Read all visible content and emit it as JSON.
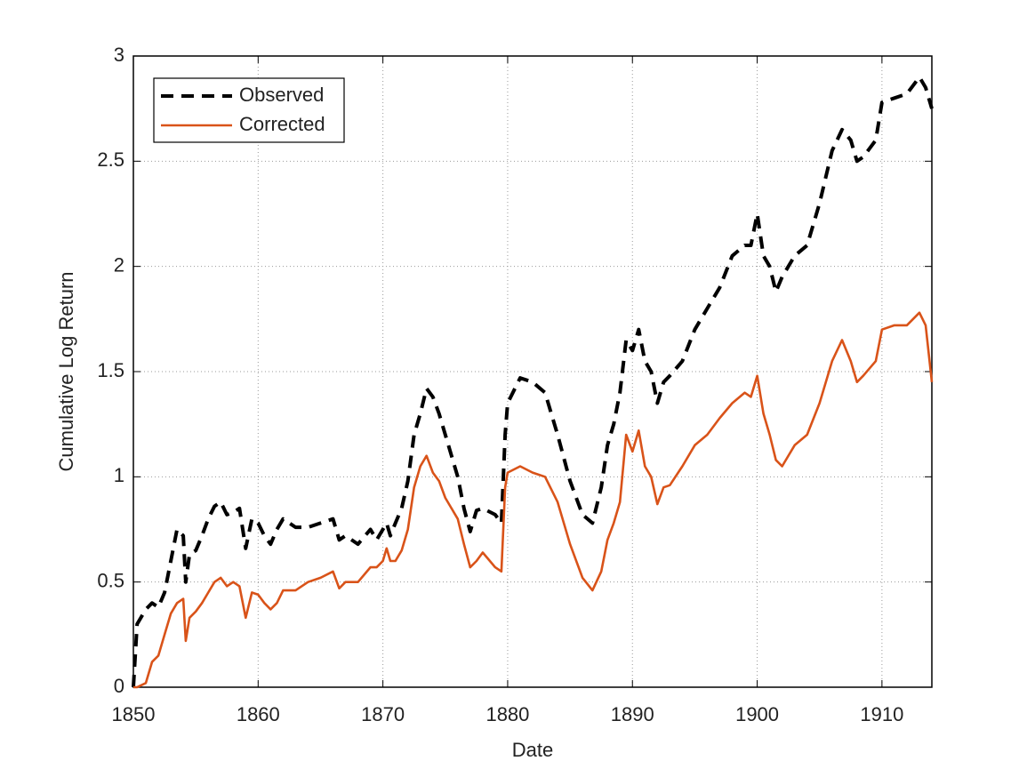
{
  "chart_data": {
    "type": "line",
    "xlabel": "Date",
    "ylabel": "Cumulative Log Return",
    "x": [
      1850,
      1850.3,
      1851,
      1851.5,
      1852,
      1852.5,
      1853,
      1853.5,
      1854,
      1854.2,
      1854.5,
      1855,
      1855.5,
      1856,
      1856.5,
      1857,
      1857.5,
      1858,
      1858.5,
      1859,
      1859.5,
      1860,
      1860.5,
      1861,
      1861.5,
      1862,
      1863,
      1864,
      1865,
      1866,
      1866.5,
      1867,
      1868,
      1869,
      1869.5,
      1870,
      1870.3,
      1870.6,
      1871,
      1871.5,
      1872,
      1872.5,
      1873,
      1873.5,
      1874,
      1874.5,
      1875,
      1876,
      1876.5,
      1877,
      1877.5,
      1878,
      1879,
      1879.5,
      1879.8,
      1880,
      1881,
      1882,
      1883,
      1884,
      1885,
      1886,
      1886.8,
      1887.5,
      1888,
      1888.5,
      1889,
      1889.5,
      1890,
      1890.5,
      1891,
      1891.5,
      1892,
      1892.5,
      1893,
      1894,
      1895,
      1896,
      1897,
      1898,
      1899,
      1899.5,
      1900,
      1900.5,
      1901,
      1901.5,
      1902,
      1903,
      1904,
      1905,
      1906,
      1906.8,
      1907.5,
      1908,
      1908.5,
      1909.5,
      1910,
      1911,
      1912,
      1913,
      1913.5,
      1914
    ],
    "series": [
      {
        "name": "Observed",
        "color": "#000000",
        "dashed": true,
        "values": [
          0,
          0.3,
          0.37,
          0.4,
          0.38,
          0.45,
          0.6,
          0.75,
          0.72,
          0.5,
          0.63,
          0.65,
          0.72,
          0.8,
          0.86,
          0.88,
          0.82,
          0.83,
          0.85,
          0.66,
          0.8,
          0.78,
          0.72,
          0.68,
          0.75,
          0.8,
          0.76,
          0.76,
          0.78,
          0.8,
          0.7,
          0.72,
          0.68,
          0.75,
          0.7,
          0.75,
          0.78,
          0.72,
          0.78,
          0.85,
          0.98,
          1.2,
          1.3,
          1.42,
          1.38,
          1.3,
          1.2,
          1.0,
          0.85,
          0.74,
          0.84,
          0.85,
          0.82,
          0.78,
          1.2,
          1.35,
          1.47,
          1.45,
          1.4,
          1.2,
          0.98,
          0.82,
          0.78,
          0.95,
          1.15,
          1.25,
          1.4,
          1.65,
          1.6,
          1.7,
          1.55,
          1.5,
          1.35,
          1.45,
          1.48,
          1.55,
          1.7,
          1.8,
          1.9,
          2.05,
          2.1,
          2.1,
          2.25,
          2.05,
          2.0,
          1.88,
          1.95,
          2.05,
          2.1,
          2.3,
          2.55,
          2.65,
          2.6,
          2.5,
          2.52,
          2.6,
          2.78,
          2.8,
          2.82,
          2.9,
          2.85,
          2.75
        ]
      },
      {
        "name": "Corrected",
        "color": "#d95319",
        "dashed": false,
        "values": [
          0,
          0,
          0.02,
          0.12,
          0.15,
          0.25,
          0.35,
          0.4,
          0.42,
          0.22,
          0.33,
          0.36,
          0.4,
          0.45,
          0.5,
          0.52,
          0.48,
          0.5,
          0.48,
          0.33,
          0.45,
          0.44,
          0.4,
          0.37,
          0.4,
          0.46,
          0.46,
          0.5,
          0.52,
          0.55,
          0.47,
          0.5,
          0.5,
          0.57,
          0.57,
          0.6,
          0.66,
          0.6,
          0.6,
          0.65,
          0.75,
          0.95,
          1.05,
          1.1,
          1.02,
          0.98,
          0.9,
          0.8,
          0.68,
          0.57,
          0.6,
          0.64,
          0.57,
          0.55,
          0.95,
          1.02,
          1.05,
          1.02,
          1.0,
          0.88,
          0.68,
          0.52,
          0.46,
          0.55,
          0.7,
          0.78,
          0.88,
          1.2,
          1.12,
          1.22,
          1.05,
          1.0,
          0.87,
          0.95,
          0.96,
          1.05,
          1.15,
          1.2,
          1.28,
          1.35,
          1.4,
          1.38,
          1.48,
          1.3,
          1.2,
          1.08,
          1.05,
          1.15,
          1.2,
          1.35,
          1.55,
          1.65,
          1.55,
          1.45,
          1.48,
          1.55,
          1.7,
          1.72,
          1.72,
          1.78,
          1.72,
          1.45
        ]
      }
    ],
    "xlim": [
      1850,
      1914
    ],
    "ylim": [
      0,
      3
    ],
    "xticks": [
      1850,
      1860,
      1870,
      1880,
      1890,
      1900,
      1910
    ],
    "yticks": [
      0,
      0.5,
      1,
      1.5,
      2,
      2.5,
      3
    ],
    "grid": true,
    "legend": "upper-left"
  }
}
